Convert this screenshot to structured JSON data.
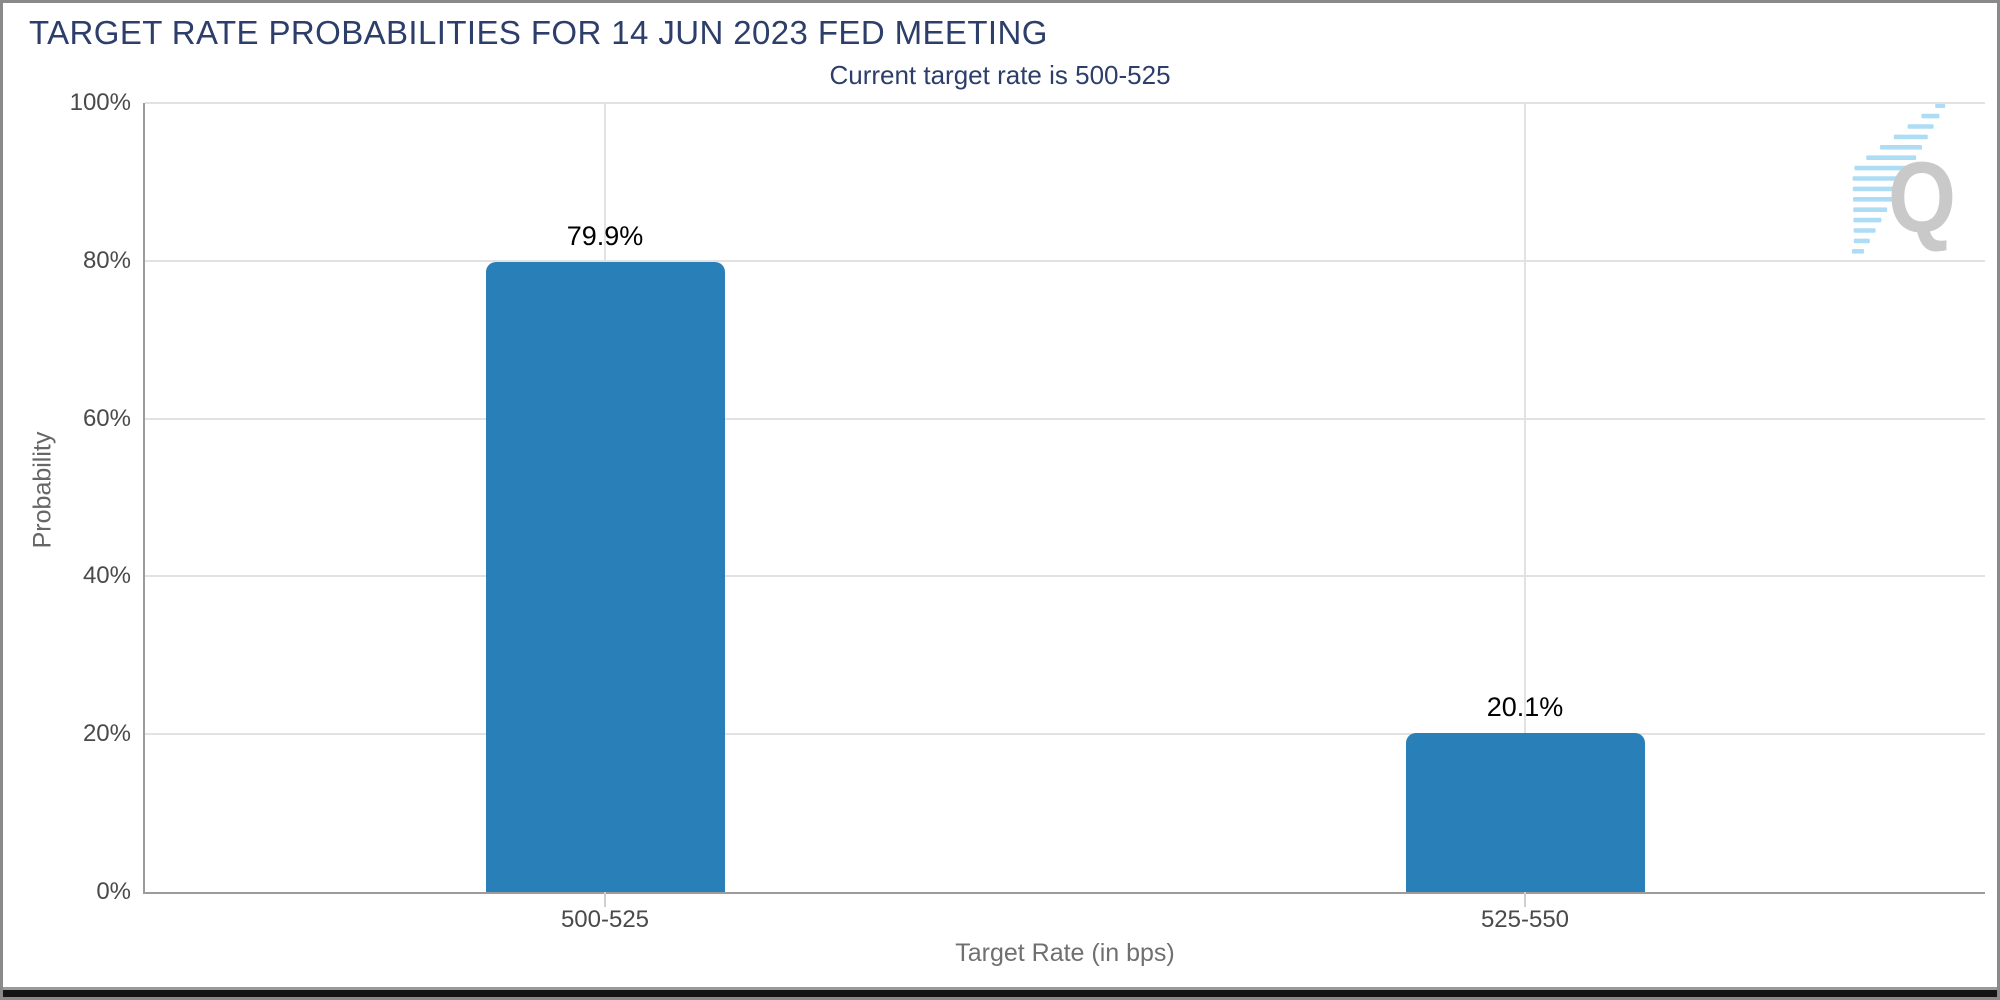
{
  "header": {
    "title": "TARGET RATE PROBABILITIES FOR 14 JUN 2023 FED MEETING",
    "subtitle": "Current target rate is 500-525"
  },
  "watermark": {
    "letter": "Q",
    "letter_color": "#c7c7c7",
    "dash_color": "#a9dcf5"
  },
  "colors": {
    "title_navy": "#2c3e69",
    "bar_blue": "#2980b8",
    "gridline": "#e2e2e2",
    "axis_line": "#9b9b9b",
    "tick_text": "#4a4a4a",
    "frame_border": "#8a8a8a",
    "bottom_edge": "#141414"
  },
  "chart_data": {
    "type": "bar",
    "title": "TARGET RATE PROBABILITIES FOR 14 JUN 2023 FED MEETING",
    "subtitle": "Current target rate is 500-525",
    "categories": [
      "500-525",
      "525-550"
    ],
    "values": [
      79.9,
      20.1
    ],
    "value_labels": [
      "79.9%",
      "20.1%"
    ],
    "xlabel": "Target Rate (in bps)",
    "ylabel": "Probability",
    "ylim": [
      0,
      100
    ],
    "ytick_values": [
      0,
      20,
      40,
      60,
      80,
      100
    ],
    "ytick_labels": [
      "0%",
      "20%",
      "40%",
      "60%",
      "80%",
      "100%"
    ],
    "grid": true,
    "legend_position": "none",
    "bar_color": "#2980b8"
  }
}
